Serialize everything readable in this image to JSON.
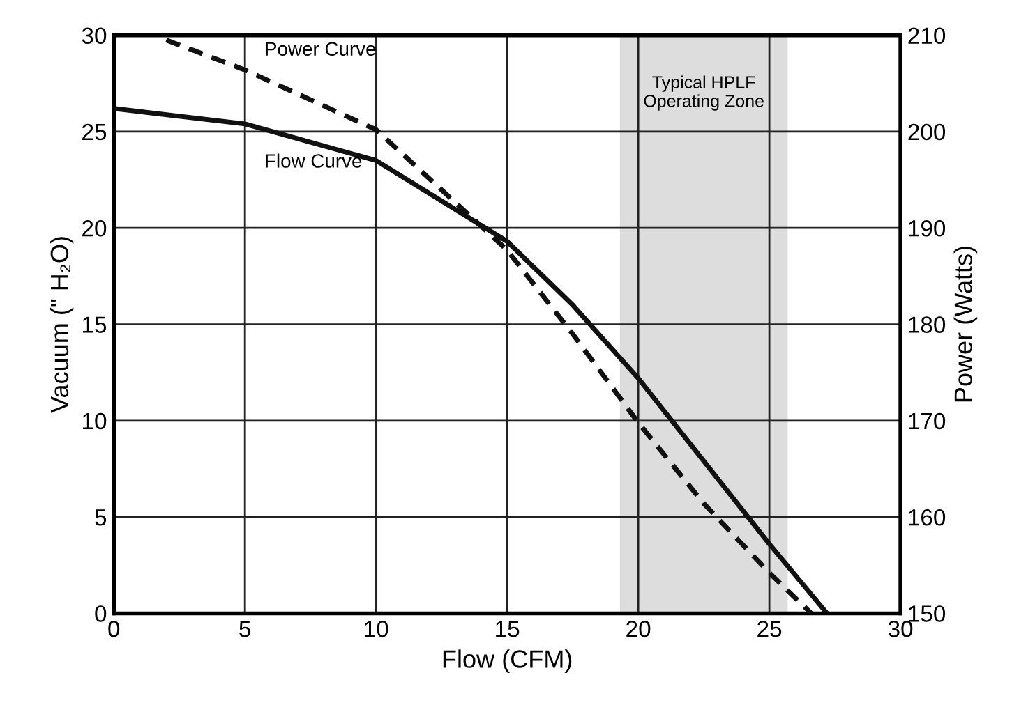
{
  "chart_data": {
    "type": "line",
    "xlabel": "Flow (CFM)",
    "ylabel": "Vacuum (\" H₂O)",
    "y2label": "Power (Watts)",
    "xlim": [
      0,
      30
    ],
    "xticks": [
      0,
      5,
      10,
      15,
      20,
      25,
      30
    ],
    "ylim": [
      0,
      30
    ],
    "yticks": [
      0,
      5,
      10,
      15,
      20,
      25,
      30
    ],
    "y2lim": [
      150,
      210
    ],
    "y2ticks": [
      150,
      160,
      170,
      180,
      190,
      200,
      210
    ],
    "grid": true,
    "legend": false,
    "series": [
      {
        "name": "Flow Curve",
        "color": "#111111",
        "line_style": "solid",
        "x": [
          0,
          5,
          10,
          15,
          17.5,
          20,
          22.5,
          25,
          27.2
        ],
        "values": [
          26.2,
          25.4,
          23.5,
          19.3,
          16.0,
          12.2,
          7.9,
          3.6,
          0
        ]
      },
      {
        "name": "Power Curve",
        "color": "#111111",
        "line_style": "dashed",
        "axis": "y2",
        "x": [
          2,
          5,
          10,
          15,
          17.5,
          20,
          22.5,
          25,
          26.6
        ],
        "values": [
          209.5,
          206.4,
          200.2,
          187.7,
          179,
          169.8,
          161.4,
          154.2,
          150
        ]
      }
    ],
    "bands": [
      {
        "axis": "x",
        "from": 19.3,
        "to": 25.7,
        "label": "Typical HPLF\nOperating Zone",
        "color": "#d4d4d4"
      }
    ]
  }
}
